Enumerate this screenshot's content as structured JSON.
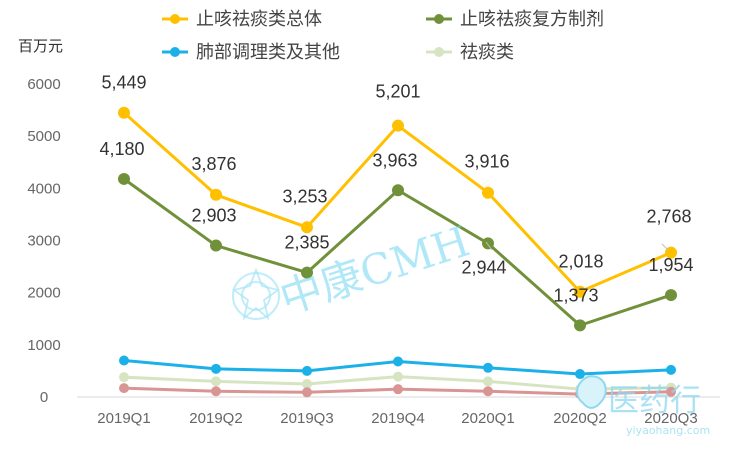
{
  "chart_data": {
    "type": "line",
    "unit_label": "百万元",
    "categories": [
      "2019Q1",
      "2019Q2",
      "2019Q3",
      "2019Q4",
      "2020Q1",
      "2020Q2",
      "2020Q3"
    ],
    "ylim": [
      0,
      6000
    ],
    "yticks": [
      "0",
      "1000",
      "2000",
      "3000",
      "4000",
      "5000",
      "6000"
    ],
    "legend_position": "top",
    "series": [
      {
        "name": "止咳祛痰类总体",
        "color": "#ffc000",
        "values": [
          5449,
          3876,
          3253,
          5201,
          3916,
          2018,
          2768
        ],
        "labels": [
          "5,449",
          "3,876",
          "3,253",
          "5,201",
          "3,916",
          "2,018",
          "2,768"
        ]
      },
      {
        "name": "止咳祛痰复方制剂",
        "color": "#70913a",
        "values": [
          4180,
          2903,
          2385,
          3963,
          2944,
          1373,
          1954
        ],
        "labels": [
          "4,180",
          "2,903",
          "2,385",
          "3,963",
          "2,944",
          "1,373",
          "1,954"
        ]
      },
      {
        "name": "肺部调理类及其他",
        "color": "#1cb0e8",
        "values": [
          700,
          540,
          500,
          680,
          560,
          440,
          520
        ]
      },
      {
        "name": "祛痰类",
        "color": "#d6e4c2",
        "values": [
          380,
          300,
          250,
          390,
          300,
          150,
          180
        ]
      },
      {
        "name": "",
        "color": "#d99594",
        "values": [
          170,
          110,
          90,
          150,
          110,
          55,
          100
        ]
      }
    ]
  },
  "watermarks": {
    "center_text": "中康CMH",
    "corner_text": "医药行",
    "corner_url": "yiyaohang.com"
  }
}
